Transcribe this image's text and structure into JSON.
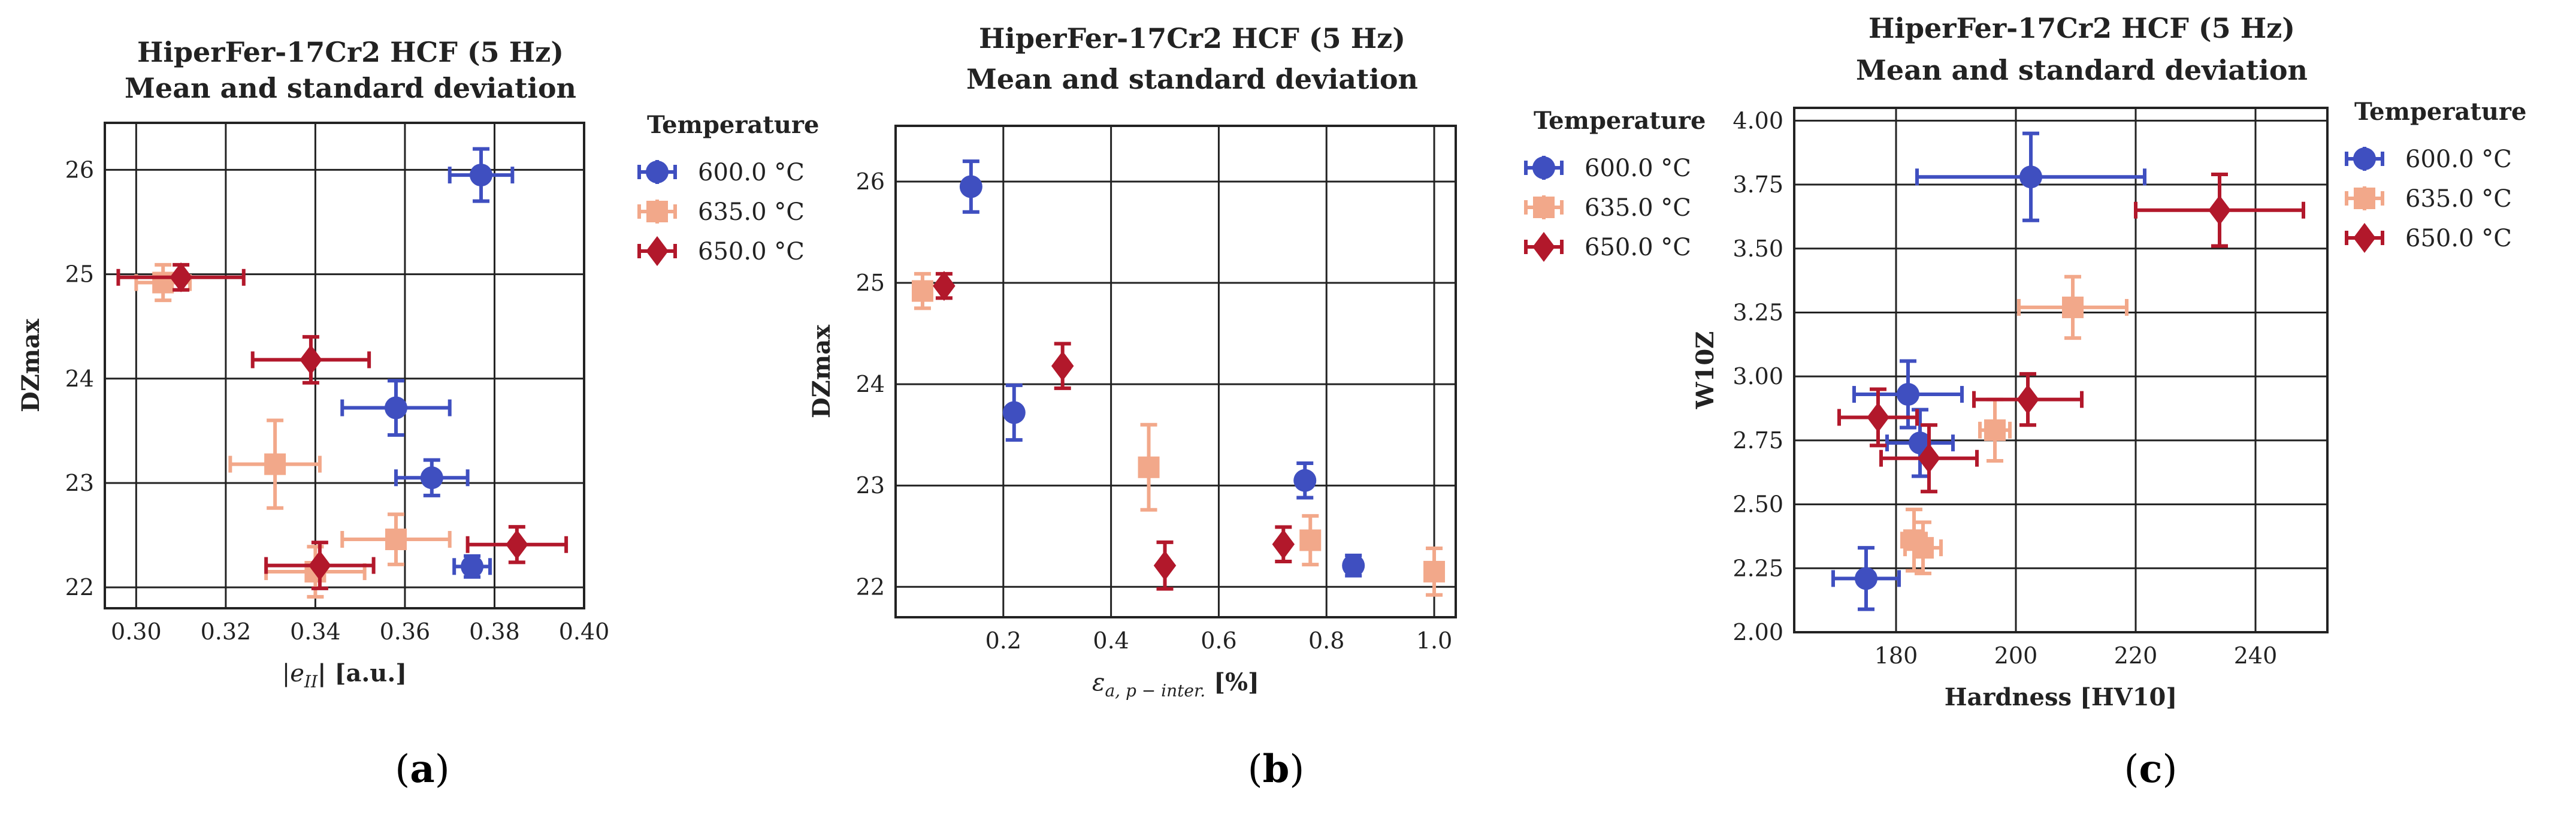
{
  "colors": {
    "600": "#3f4fc0",
    "635": "#f2a88a",
    "650": "#b2182b"
  },
  "legend": {
    "title": "Temperature",
    "entries": [
      "600.0 °C",
      "635.0 °C",
      "650.0 °C"
    ]
  },
  "captions": [
    "a",
    "b",
    "c"
  ],
  "chart_data": [
    {
      "type": "scatter",
      "title_line1": "HiperFer-17Cr2 HCF (5 Hz)",
      "title_line2": "Mean and standard deviation",
      "ylabel": "DZmax",
      "xlabel_prefix": "|e",
      "xlabel_sub": "II",
      "xlabel_suffix": "| [a.u.]",
      "xlim": [
        0.293,
        0.4
      ],
      "ylim": [
        21.8,
        26.45
      ],
      "xticks": [
        0.3,
        0.32,
        0.34,
        0.36,
        0.38,
        0.4
      ],
      "xticklabels": [
        "0.30",
        "0.32",
        "0.34",
        "0.36",
        "0.38",
        "0.40"
      ],
      "yticks": [
        22,
        23,
        24,
        25,
        26
      ],
      "yticklabels": [
        "22",
        "23",
        "24",
        "25",
        "26"
      ],
      "series": [
        {
          "name": "600.0 °C",
          "marker": "circle",
          "points": [
            {
              "x": 0.377,
              "y": 25.95,
              "xerr": 0.007,
              "yerr": 0.25
            },
            {
              "x": 0.358,
              "y": 23.72,
              "xerr": 0.012,
              "yerr": 0.26
            },
            {
              "x": 0.366,
              "y": 23.05,
              "xerr": 0.008,
              "yerr": 0.17
            },
            {
              "x": 0.375,
              "y": 22.2,
              "xerr": 0.004,
              "yerr": 0.1
            }
          ]
        },
        {
          "name": "635.0 °C",
          "marker": "square",
          "points": [
            {
              "x": 0.306,
              "y": 24.92,
              "xerr": 0.006,
              "yerr": 0.17
            },
            {
              "x": 0.331,
              "y": 23.18,
              "xerr": 0.01,
              "yerr": 0.42
            },
            {
              "x": 0.358,
              "y": 22.46,
              "xerr": 0.012,
              "yerr": 0.24
            },
            {
              "x": 0.34,
              "y": 22.15,
              "xerr": 0.011,
              "yerr": 0.24
            }
          ]
        },
        {
          "name": "650.0 °C",
          "marker": "diamond",
          "points": [
            {
              "x": 0.31,
              "y": 24.97,
              "xerr": 0.014,
              "yerr": 0.12
            },
            {
              "x": 0.339,
              "y": 24.18,
              "xerr": 0.013,
              "yerr": 0.22
            },
            {
              "x": 0.385,
              "y": 22.41,
              "xerr": 0.011,
              "yerr": 0.17
            },
            {
              "x": 0.341,
              "y": 22.21,
              "xerr": 0.012,
              "yerr": 0.22
            }
          ]
        }
      ]
    },
    {
      "type": "scatter",
      "title_line1": "HiperFer-17Cr2 HCF (5 Hz)",
      "title_line2": "Mean and standard deviation",
      "ylabel": "DZmax",
      "xlabel_prefix": "ε",
      "xlabel_sub": "a, p − inter.",
      "xlabel_suffix": " [%]",
      "xlim": [
        0.0,
        1.04
      ],
      "ylim": [
        21.7,
        26.55
      ],
      "xticks": [
        0.2,
        0.4,
        0.6,
        0.8,
        1.0
      ],
      "xticklabels": [
        "0.2",
        "0.4",
        "0.6",
        "0.8",
        "1.0"
      ],
      "yticks": [
        22,
        23,
        24,
        25,
        26
      ],
      "yticklabels": [
        "22",
        "23",
        "24",
        "25",
        "26"
      ],
      "series": [
        {
          "name": "600.0 °C",
          "marker": "circle",
          "points": [
            {
              "x": 0.14,
              "y": 25.95,
              "xerr": 0,
              "yerr": 0.25
            },
            {
              "x": 0.22,
              "y": 23.72,
              "xerr": 0,
              "yerr": 0.27
            },
            {
              "x": 0.76,
              "y": 23.05,
              "xerr": 0,
              "yerr": 0.17
            },
            {
              "x": 0.85,
              "y": 22.21,
              "xerr": 0,
              "yerr": 0.1
            }
          ]
        },
        {
          "name": "635.0 °C",
          "marker": "square",
          "points": [
            {
              "x": 0.05,
              "y": 24.92,
              "xerr": 0,
              "yerr": 0.17
            },
            {
              "x": 0.47,
              "y": 23.18,
              "xerr": 0,
              "yerr": 0.42
            },
            {
              "x": 0.77,
              "y": 22.46,
              "xerr": 0,
              "yerr": 0.24
            },
            {
              "x": 1.0,
              "y": 22.15,
              "xerr": 0,
              "yerr": 0.23
            }
          ]
        },
        {
          "name": "650.0 °C",
          "marker": "diamond",
          "points": [
            {
              "x": 0.09,
              "y": 24.97,
              "xerr": 0,
              "yerr": 0.12
            },
            {
              "x": 0.31,
              "y": 24.18,
              "xerr": 0,
              "yerr": 0.22
            },
            {
              "x": 0.72,
              "y": 22.42,
              "xerr": 0,
              "yerr": 0.17
            },
            {
              "x": 0.5,
              "y": 22.21,
              "xerr": 0,
              "yerr": 0.23
            }
          ]
        }
      ]
    },
    {
      "type": "scatter",
      "title_line1": "HiperFer-17Cr2 HCF (5 Hz)",
      "title_line2": "Mean and standard deviation",
      "ylabel": "W10Z",
      "xlabel_prefix": "Hardness [HV10]",
      "xlabel_sub": "",
      "xlabel_suffix": "",
      "xlim": [
        163,
        252
      ],
      "ylim": [
        2.0,
        4.05
      ],
      "xticks": [
        180,
        200,
        220,
        240
      ],
      "xticklabels": [
        "180",
        "200",
        "220",
        "240"
      ],
      "yticks": [
        2.0,
        2.25,
        2.5,
        2.75,
        3.0,
        3.25,
        3.5,
        3.75,
        4.0
      ],
      "yticklabels": [
        "2.00",
        "2.25",
        "2.50",
        "2.75",
        "3.00",
        "3.25",
        "3.50",
        "3.75",
        "4.00"
      ],
      "series": [
        {
          "name": "600.0 °C",
          "marker": "circle",
          "points": [
            {
              "x": 202.5,
              "y": 3.78,
              "xerr": 19.0,
              "yerr": 0.17
            },
            {
              "x": 182.0,
              "y": 2.93,
              "xerr": 9.0,
              "yerr": 0.13
            },
            {
              "x": 184.0,
              "y": 2.74,
              "xerr": 5.5,
              "yerr": 0.13
            },
            {
              "x": 175.0,
              "y": 2.21,
              "xerr": 5.5,
              "yerr": 0.12
            }
          ]
        },
        {
          "name": "635.0 °C",
          "marker": "square",
          "points": [
            {
              "x": 209.5,
              "y": 3.27,
              "xerr": 9.0,
              "yerr": 0.12
            },
            {
              "x": 196.5,
              "y": 2.79,
              "xerr": 2.5,
              "yerr": 0.12
            },
            {
              "x": 184.5,
              "y": 2.33,
              "xerr": 3.0,
              "yerr": 0.1
            },
            {
              "x": 183.0,
              "y": 2.36,
              "xerr": 2.0,
              "yerr": 0.12
            }
          ]
        },
        {
          "name": "650.0 °C",
          "marker": "diamond",
          "points": [
            {
              "x": 234.0,
              "y": 3.65,
              "xerr": 14.0,
              "yerr": 0.14
            },
            {
              "x": 202.0,
              "y": 2.91,
              "xerr": 9.0,
              "yerr": 0.1
            },
            {
              "x": 177.0,
              "y": 2.84,
              "xerr": 6.5,
              "yerr": 0.11
            },
            {
              "x": 185.5,
              "y": 2.68,
              "xerr": 8.0,
              "yerr": 0.13
            }
          ]
        }
      ]
    }
  ]
}
